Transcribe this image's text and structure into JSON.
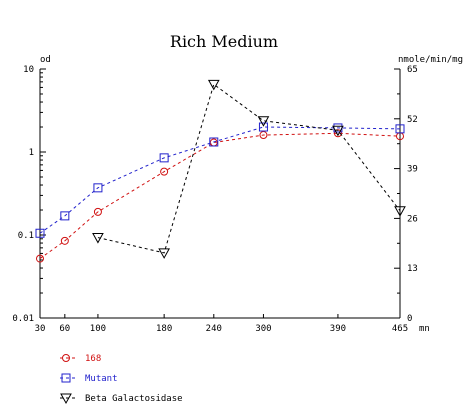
{
  "chart_data": {
    "type": "line",
    "title": "Rich Medium",
    "x_unit": "mn",
    "y_left_label": "od",
    "y_right_label": "nmole/min/mg",
    "x_ticks": [
      30,
      60,
      100,
      180,
      240,
      300,
      390,
      465
    ],
    "y_left_ticks": [
      "0.01",
      "0.1",
      "1",
      "10"
    ],
    "y_left_log_range": [
      0.01,
      10
    ],
    "y_right_ticks": [
      "0",
      "13",
      "26",
      "39",
      "52",
      "65"
    ],
    "y_right_range": [
      0,
      65
    ],
    "x_range": [
      30,
      465
    ],
    "grid": false,
    "series": [
      {
        "name": "168",
        "axis": "left",
        "marker": "circle",
        "color": "#d01010",
        "x": [
          30,
          60,
          100,
          180,
          240,
          300,
          390,
          465
        ],
        "y": [
          0.052,
          0.085,
          0.19,
          0.58,
          1.3,
          1.6,
          1.68,
          1.55
        ]
      },
      {
        "name": "Mutant",
        "axis": "left",
        "marker": "square",
        "color": "#2222cc",
        "x": [
          30,
          60,
          100,
          180,
          240,
          300,
          390,
          465
        ],
        "y": [
          0.105,
          0.17,
          0.37,
          0.85,
          1.32,
          2.0,
          1.95,
          1.9
        ]
      },
      {
        "name": "Beta Galactosidase",
        "axis": "right",
        "marker": "triangle-down",
        "color": "#000000",
        "x": [
          100,
          180,
          240,
          300,
          390,
          465
        ],
        "y": [
          21,
          17,
          61,
          51.5,
          49,
          28
        ]
      }
    ]
  }
}
